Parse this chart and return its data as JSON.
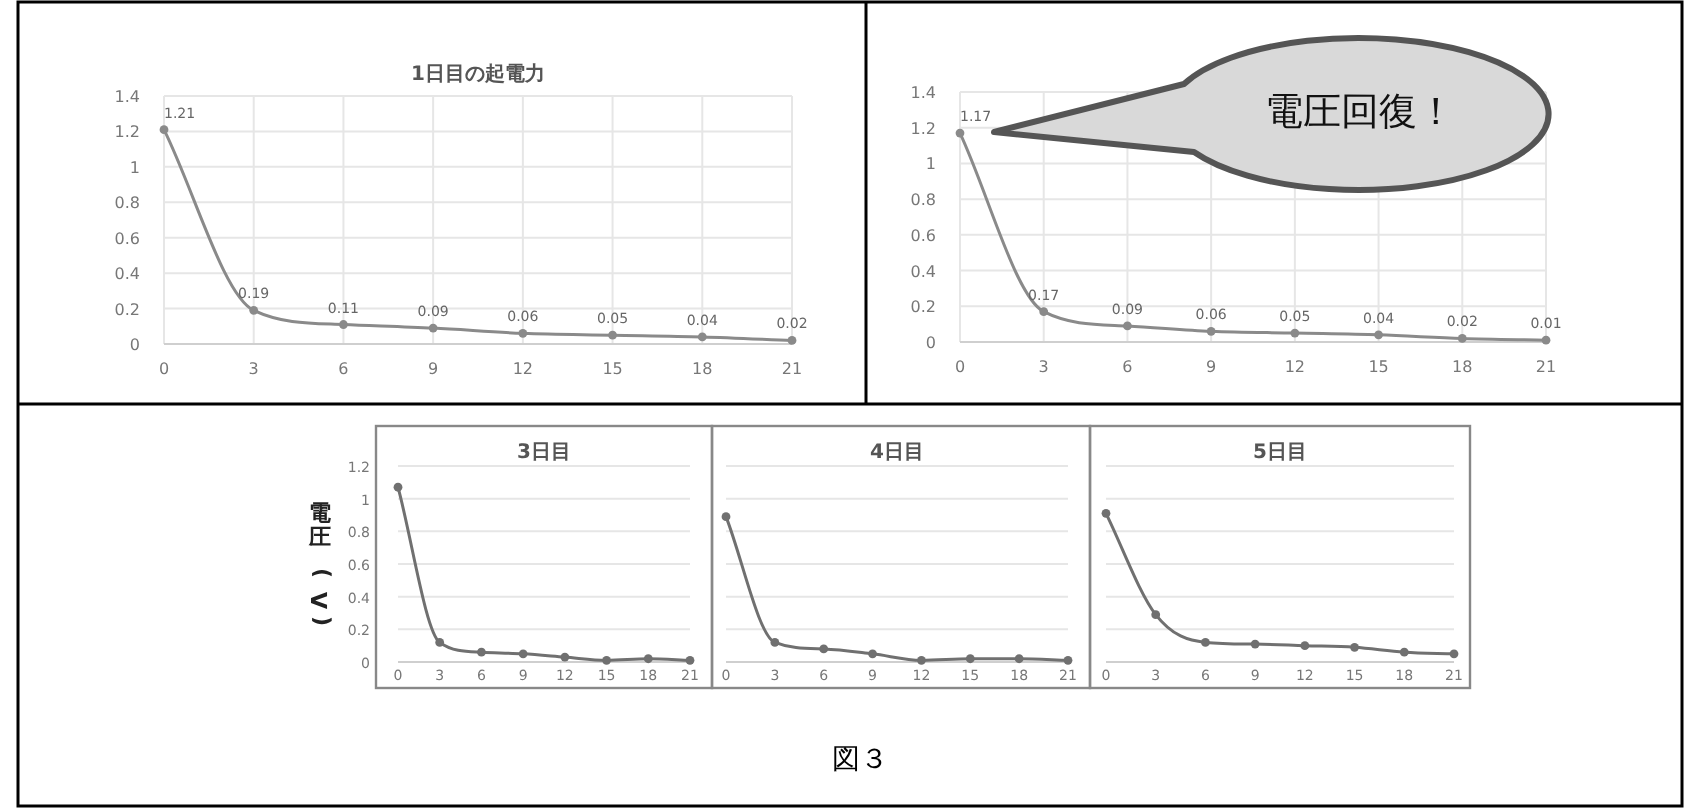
{
  "chart_data": [
    {
      "type": "line",
      "title": "1日目の起電力",
      "x": [
        0,
        3,
        6,
        9,
        12,
        15,
        18,
        21
      ],
      "values": [
        1.21,
        0.19,
        0.11,
        0.09,
        0.06,
        0.05,
        0.04,
        0.02
      ],
      "color": "#8a8a8a",
      "xlim": [
        0,
        21
      ],
      "xticks": [
        0,
        3,
        6,
        9,
        12,
        15,
        18,
        21
      ],
      "ylim": [
        0,
        1.4
      ],
      "yticks": [
        0,
        0.2,
        0.4,
        0.6,
        0.8,
        1,
        1.2,
        1.4
      ],
      "grid": true,
      "marker": "circle",
      "data_labels": true
    },
    {
      "type": "line",
      "x": [
        0,
        3,
        6,
        9,
        12,
        15,
        18,
        21
      ],
      "values": [
        1.17,
        0.17,
        0.09,
        0.06,
        0.05,
        0.04,
        0.02,
        0.01
      ],
      "color": "#8a8a8a",
      "xlim": [
        0,
        21
      ],
      "xticks": [
        0,
        3,
        6,
        9,
        12,
        15,
        18,
        21
      ],
      "ylim": [
        0,
        1.4
      ],
      "yticks": [
        0,
        0.2,
        0.4,
        0.6,
        0.8,
        1,
        1.2,
        1.4
      ],
      "grid": true,
      "marker": "circle",
      "data_labels": true,
      "annotations": [
        "電圧回復！"
      ]
    },
    {
      "type": "line",
      "title": "3日目",
      "ylabel": "電圧(V)",
      "x": [
        0,
        3,
        6,
        9,
        12,
        15,
        18,
        21
      ],
      "values": [
        1.07,
        0.12,
        0.06,
        0.05,
        0.03,
        0.01,
        0.02,
        0.01
      ],
      "color": "#707070",
      "xlim": [
        0,
        21
      ],
      "xticks": [
        0,
        3,
        6,
        9,
        12,
        15,
        18,
        21
      ],
      "ylim": [
        0,
        1.2
      ],
      "yticks": [
        0,
        0.2,
        0.4,
        0.6,
        0.8,
        1,
        1.2
      ],
      "grid": "y",
      "marker": "circle",
      "annotations": [
        "図３"
      ]
    },
    {
      "type": "line",
      "title": "4日目",
      "x": [
        0,
        3,
        6,
        9,
        12,
        15,
        18,
        21
      ],
      "values": [
        0.89,
        0.12,
        0.08,
        0.05,
        0.01,
        0.02,
        0.02,
        0.01
      ],
      "color": "#707070",
      "xlim": [
        0,
        21
      ],
      "xticks": [
        0,
        3,
        6,
        9,
        12,
        15,
        18,
        21
      ],
      "ylim": [
        0,
        1.2
      ],
      "yticks": [
        0,
        0.2,
        0.4,
        0.6,
        0.8,
        1,
        1.2
      ],
      "grid": "y",
      "marker": "circle",
      "tick_labels": "x"
    },
    {
      "type": "line",
      "title": "5日目",
      "x": [
        0,
        3,
        6,
        9,
        12,
        15,
        18,
        21
      ],
      "values": [
        0.91,
        0.29,
        0.12,
        0.11,
        0.1,
        0.09,
        0.06,
        0.05
      ],
      "color": "#707070",
      "xlim": [
        0,
        21
      ],
      "xticks": [
        0,
        3,
        6,
        9,
        12,
        15,
        18,
        21
      ],
      "ylim": [
        0,
        1.2
      ],
      "yticks": [
        0,
        0.2,
        0.4,
        0.6,
        0.8,
        1,
        1.2
      ],
      "grid": "y",
      "marker": "circle",
      "tick_labels": "x"
    }
  ]
}
